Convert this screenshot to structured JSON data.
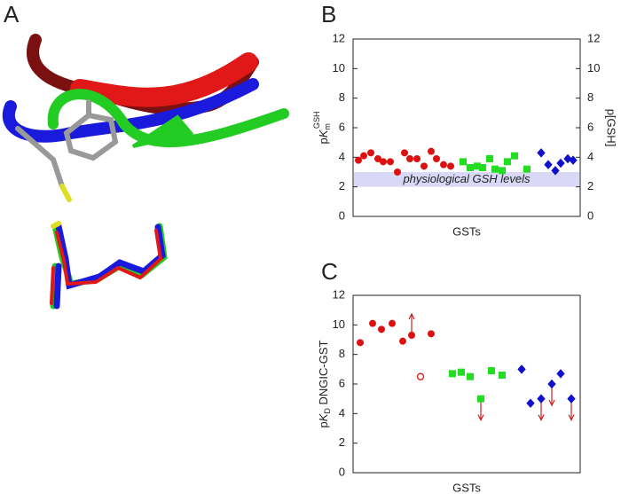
{
  "panel_a": {
    "label": "A"
  },
  "chart_data": [
    {
      "type": "scatter",
      "panel_label": "B",
      "ylabel": {
        "prefix": "p",
        "italic": "K",
        "sub": "m",
        "sup": "GSH"
      },
      "y2label": "p[GSH]",
      "xlabel": "GSTs",
      "xlim": [
        0,
        64
      ],
      "ylim": [
        0,
        12
      ],
      "yticks": [
        0,
        2,
        4,
        6,
        8,
        10,
        12
      ],
      "y2lim": [
        0,
        12
      ],
      "y2ticks": [
        0,
        2,
        4,
        6,
        8,
        10,
        12
      ],
      "band": {
        "range": [
          2,
          3
        ],
        "label": "physiological GSH levels",
        "color": "#d9d9f7"
      },
      "series": [
        {
          "color": "#dd1111",
          "marker": "circle",
          "x": [
            1.5,
            3,
            5,
            7,
            8.5,
            10.5,
            12.5,
            14.5,
            16,
            18,
            20,
            22,
            23.5,
            25.5,
            27.5
          ],
          "values": [
            3.8,
            4.1,
            4.3,
            3.9,
            3.7,
            3.7,
            3.0,
            4.3,
            3.9,
            3.9,
            3.4,
            4.4,
            3.9,
            3.5,
            3.4
          ]
        },
        {
          "color": "#22dd22",
          "marker": "square",
          "x": [
            31,
            33,
            35,
            36.5,
            38.5,
            40,
            42,
            43.5,
            45.5,
            49
          ],
          "values": [
            3.7,
            3.3,
            3.4,
            3.3,
            3.9,
            3.2,
            3.1,
            3.7,
            4.1,
            3.2
          ]
        },
        {
          "color": "#1111cc",
          "marker": "diamond",
          "x": [
            53,
            55,
            57,
            58.5,
            60.5,
            62
          ],
          "values": [
            4.3,
            3.5,
            3.1,
            3.6,
            3.9,
            3.8
          ]
        }
      ]
    },
    {
      "type": "scatter",
      "panel_label": "C",
      "ylabel": {
        "prefix": "p",
        "italic": "K",
        "sub": "D",
        "rest": " DNGIC-GST"
      },
      "xlabel": "GSTs",
      "xlim": [
        0,
        64
      ],
      "ylim": [
        0,
        12
      ],
      "yticks": [
        0,
        2,
        4,
        6,
        8,
        10,
        12
      ],
      "arrow_color": "#cc2222",
      "series": [
        {
          "color": "#dd1111",
          "marker": "circle",
          "x": [
            2,
            5.5,
            8,
            11,
            14,
            16.5,
            22,
            19
          ],
          "values": [
            8.8,
            10.1,
            9.7,
            10.1,
            8.9,
            9.3,
            9.4,
            6.5
          ],
          "filled": [
            true,
            true,
            true,
            true,
            true,
            true,
            true,
            false
          ],
          "arrows": [
            "none",
            "none",
            "none",
            "none",
            "none",
            "up",
            "none",
            "none"
          ]
        },
        {
          "color": "#22dd22",
          "marker": "square",
          "x": [
            28,
            30.5,
            33,
            36,
            39,
            42
          ],
          "values": [
            6.7,
            6.8,
            6.5,
            5.0,
            6.9,
            6.6
          ],
          "arrows": [
            "none",
            "none",
            "none",
            "down",
            "none",
            "none"
          ]
        },
        {
          "color": "#1111cc",
          "marker": "diamond",
          "x": [
            47.5,
            50,
            53,
            56,
            58.5,
            61.5
          ],
          "values": [
            7.0,
            4.7,
            5.0,
            6.0,
            6.7,
            5.0
          ],
          "arrows": [
            "none",
            "none",
            "down",
            "down",
            "none",
            "down"
          ]
        }
      ]
    }
  ]
}
